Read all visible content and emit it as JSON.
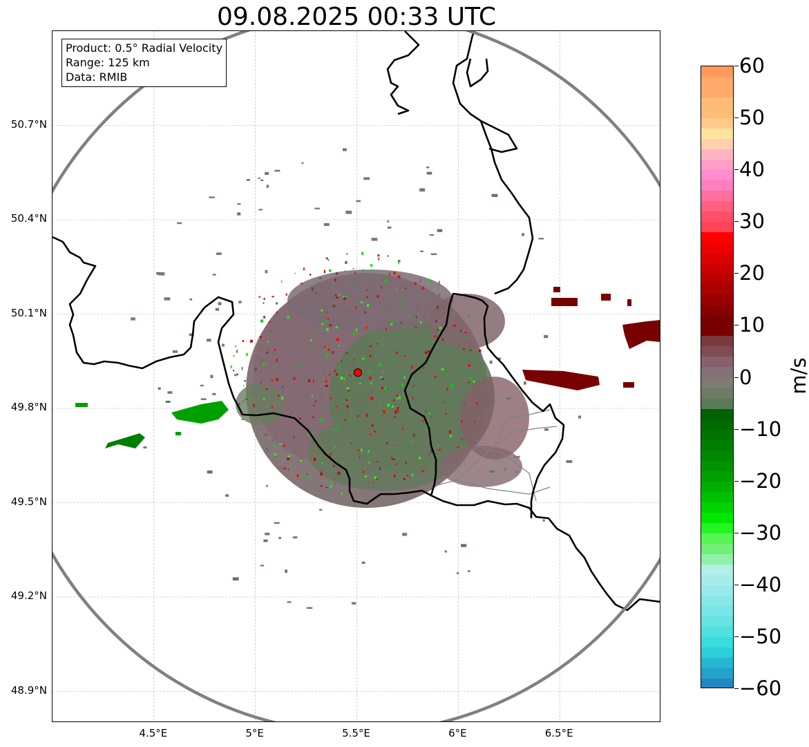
{
  "title": "09.08.2025 00:33 UTC",
  "info_box": {
    "product": "Product: 0.5° Radial Velocity",
    "range": "Range: 125 km",
    "data_source": "Data: RMIB"
  },
  "map": {
    "lon_range": [
      4.0,
      7.0
    ],
    "lat_range": [
      48.8,
      51.0
    ],
    "radar_site": {
      "lon": 5.505,
      "lat": 49.914
    },
    "range_km": 125,
    "lat_ticks": [
      {
        "value": 50.7,
        "label": "50.7°N"
      },
      {
        "value": 50.4,
        "label": "50.4°N"
      },
      {
        "value": 50.1,
        "label": "50.1°N"
      },
      {
        "value": 49.8,
        "label": "49.8°N"
      },
      {
        "value": 49.5,
        "label": "49.5°N"
      },
      {
        "value": 49.2,
        "label": "49.2°N"
      },
      {
        "value": 48.9,
        "label": "48.9°N"
      }
    ],
    "lon_ticks": [
      {
        "value": 4.5,
        "label": "4.5°E"
      },
      {
        "value": 5.0,
        "label": "5°E"
      },
      {
        "value": 5.5,
        "label": "5.5°E"
      },
      {
        "value": 6.0,
        "label": "6°E"
      },
      {
        "value": 6.5,
        "label": "6.5°E"
      }
    ],
    "colors": {
      "range_ring": "#808080",
      "border": "#000000",
      "grid": "#b0b0b0",
      "radar_marker": "#ff0000"
    }
  },
  "colorbar": {
    "unit": "m/s",
    "min": -60,
    "max": 60,
    "ticks": [
      {
        "value": 60,
        "label": "60"
      },
      {
        "value": 50,
        "label": "50"
      },
      {
        "value": 40,
        "label": "40"
      },
      {
        "value": 30,
        "label": "30"
      },
      {
        "value": 20,
        "label": "20"
      },
      {
        "value": 10,
        "label": "10"
      },
      {
        "value": 0,
        "label": "0"
      },
      {
        "value": -10,
        "label": "−10"
      },
      {
        "value": -20,
        "label": "−20"
      },
      {
        "value": -30,
        "label": "−30"
      },
      {
        "value": -40,
        "label": "−40"
      },
      {
        "value": -50,
        "label": "−50"
      },
      {
        "value": -60,
        "label": "−60"
      }
    ],
    "stops": [
      {
        "from": 58,
        "to": 60,
        "color": "#ff9a5c"
      },
      {
        "from": 54,
        "to": 58,
        "color": "#ffa96a"
      },
      {
        "from": 50,
        "to": 54,
        "color": "#ffbb78"
      },
      {
        "from": 48,
        "to": 50,
        "color": "#ffca88"
      },
      {
        "from": 46,
        "to": 48,
        "color": "#ffe39e"
      },
      {
        "from": 44,
        "to": 46,
        "color": "#ffd0b0"
      },
      {
        "from": 42,
        "to": 44,
        "color": "#ffb4c4"
      },
      {
        "from": 40,
        "to": 42,
        "color": "#ff9fc8"
      },
      {
        "from": 38,
        "to": 40,
        "color": "#ff8ccc"
      },
      {
        "from": 36,
        "to": 38,
        "color": "#ff7fbe"
      },
      {
        "from": 34,
        "to": 36,
        "color": "#ff709e"
      },
      {
        "from": 32,
        "to": 34,
        "color": "#ff6080"
      },
      {
        "from": 30,
        "to": 32,
        "color": "#ff5068"
      },
      {
        "from": 28,
        "to": 30,
        "color": "#ff4458"
      },
      {
        "from": 26,
        "to": 28,
        "color": "#ff0000"
      },
      {
        "from": 24,
        "to": 26,
        "color": "#ee0000"
      },
      {
        "from": 22,
        "to": 24,
        "color": "#dd0000"
      },
      {
        "from": 20,
        "to": 22,
        "color": "#cc0000"
      },
      {
        "from": 18,
        "to": 20,
        "color": "#bb0000"
      },
      {
        "from": 16,
        "to": 18,
        "color": "#aa0000"
      },
      {
        "from": 14,
        "to": 16,
        "color": "#990000"
      },
      {
        "from": 12,
        "to": 14,
        "color": "#880000"
      },
      {
        "from": 10,
        "to": 12,
        "color": "#770000"
      },
      {
        "from": 8,
        "to": 10,
        "color": "#7a0000"
      },
      {
        "from": 6,
        "to": 8,
        "color": "#7a3a3e"
      },
      {
        "from": 4,
        "to": 6,
        "color": "#804c54"
      },
      {
        "from": 2,
        "to": 4,
        "color": "#86606a"
      },
      {
        "from": 0,
        "to": 2,
        "color": "#857078"
      },
      {
        "from": -2,
        "to": 0,
        "color": "#7f7c75"
      },
      {
        "from": -4,
        "to": -2,
        "color": "#6d7c65"
      },
      {
        "from": -6,
        "to": -4,
        "color": "#5a7a58"
      },
      {
        "from": -8,
        "to": -6,
        "color": "#006100"
      },
      {
        "from": -10,
        "to": -8,
        "color": "#006a00"
      },
      {
        "from": -12,
        "to": -10,
        "color": "#007400"
      },
      {
        "from": -14,
        "to": -12,
        "color": "#007e00"
      },
      {
        "from": -16,
        "to": -14,
        "color": "#008800"
      },
      {
        "from": -18,
        "to": -16,
        "color": "#009400"
      },
      {
        "from": -20,
        "to": -18,
        "color": "#00a000"
      },
      {
        "from": -22,
        "to": -20,
        "color": "#00ae00"
      },
      {
        "from": -24,
        "to": -22,
        "color": "#00c000"
      },
      {
        "from": -26,
        "to": -24,
        "color": "#00d400"
      },
      {
        "from": -28,
        "to": -26,
        "color": "#00e800"
      },
      {
        "from": -30,
        "to": -28,
        "color": "#22f522"
      },
      {
        "from": -32,
        "to": -30,
        "color": "#55f555"
      },
      {
        "from": -34,
        "to": -32,
        "color": "#70f077"
      },
      {
        "from": -36,
        "to": -34,
        "color": "#90f0a8"
      },
      {
        "from": -38,
        "to": -36,
        "color": "#b2efe6"
      },
      {
        "from": -40,
        "to": -38,
        "color": "#a6ecea"
      },
      {
        "from": -42,
        "to": -40,
        "color": "#98eaea"
      },
      {
        "from": -44,
        "to": -42,
        "color": "#88e8e8"
      },
      {
        "from": -46,
        "to": -44,
        "color": "#78e6e6"
      },
      {
        "from": -48,
        "to": -46,
        "color": "#66e3e3"
      },
      {
        "from": -50,
        "to": -48,
        "color": "#50e0e0"
      },
      {
        "from": -52,
        "to": -50,
        "color": "#38dcdc"
      },
      {
        "from": -54,
        "to": -52,
        "color": "#2bcfd8"
      },
      {
        "from": -56,
        "to": -54,
        "color": "#26b6d2"
      },
      {
        "from": -58,
        "to": -56,
        "color": "#23a2ca"
      },
      {
        "from": -60,
        "to": -58,
        "color": "#1f87c2"
      }
    ]
  }
}
